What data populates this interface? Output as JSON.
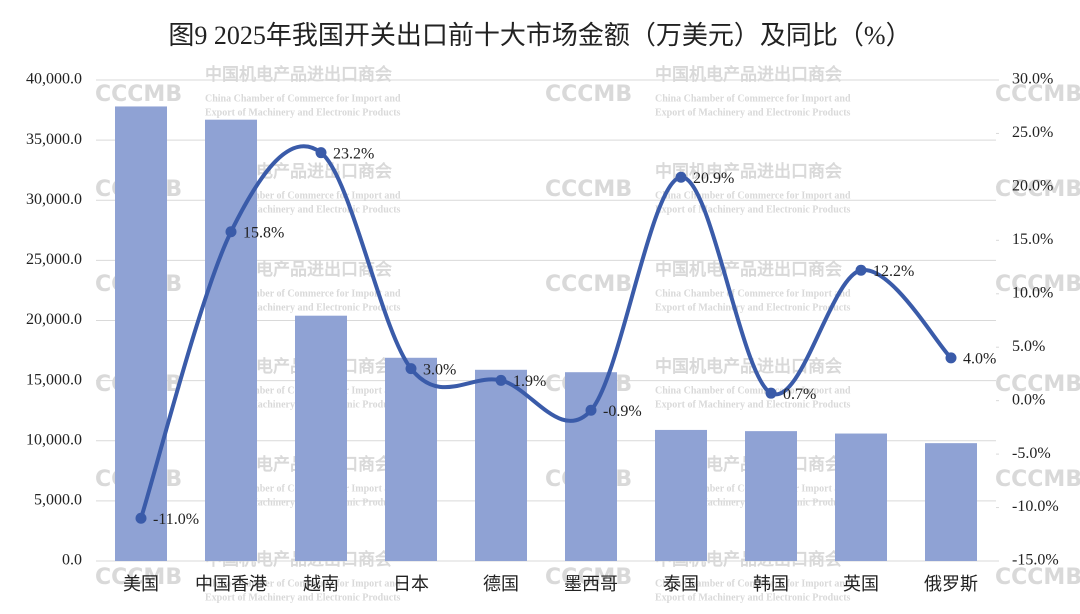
{
  "chart_data": {
    "type": "bar-line",
    "title": "图9 2025年我国开关出口前十大市场金额（万美元）及同比（%）",
    "categories": [
      "美国",
      "中国香港",
      "越南",
      "日本",
      "德国",
      "墨西哥",
      "泰国",
      "韩国",
      "英国",
      "俄罗斯"
    ],
    "series": [
      {
        "name": "金额",
        "type": "bar",
        "color": "#8fa2d4",
        "values": [
          37800,
          36700,
          20400,
          16900,
          15900,
          15700,
          10900,
          10800,
          10600,
          9800
        ]
      },
      {
        "name": "同比",
        "type": "line",
        "axis": "y2",
        "color": "#3a5ba9",
        "smooth": true,
        "values": [
          -11.0,
          15.8,
          23.2,
          3.0,
          1.9,
          -0.9,
          20.9,
          0.7,
          12.2,
          4.0
        ],
        "value_labels": [
          "-11.0%",
          "15.8%",
          "23.2%",
          "3.0%",
          "1.9%",
          "-0.9%",
          "20.9%",
          "0.7%",
          "12.2%",
          "4.0%"
        ]
      }
    ],
    "negative_label_color": "#ff0000",
    "ylim": [
      0,
      40000
    ],
    "yticks": [
      {
        "value": 0,
        "label": "0.0"
      },
      {
        "value": 5000,
        "label": "5,000.0"
      },
      {
        "value": 10000,
        "label": "10,000.0"
      },
      {
        "value": 15000,
        "label": "15,000.0"
      },
      {
        "value": 20000,
        "label": "20,000.0"
      },
      {
        "value": 25000,
        "label": "25,000.0"
      },
      {
        "value": 30000,
        "label": "30,000.0"
      },
      {
        "value": 35000,
        "label": "35,000.0"
      },
      {
        "value": 40000,
        "label": "40,000.0"
      }
    ],
    "y2lim": [
      -15,
      30
    ],
    "y2ticks": [
      {
        "value": -15,
        "label": "-15.0%"
      },
      {
        "value": -10,
        "label": "-10.0%"
      },
      {
        "value": -5,
        "label": "-5.0%"
      },
      {
        "value": 0,
        "label": "0.0%"
      },
      {
        "value": 5,
        "label": "5.0%"
      },
      {
        "value": 10,
        "label": "10.0%"
      },
      {
        "value": 15,
        "label": "15.0%"
      },
      {
        "value": 20,
        "label": "20.0%"
      },
      {
        "value": 25,
        "label": "25.0%"
      },
      {
        "value": 30,
        "label": "30.0%"
      }
    ],
    "grid": true,
    "watermark": {
      "logo": "CCCMB",
      "name": "中国机电产品进出口商会",
      "english_1": "China Chamber of Commerce for Import and",
      "english_2": "Export of Machinery and Electronic Products"
    }
  }
}
